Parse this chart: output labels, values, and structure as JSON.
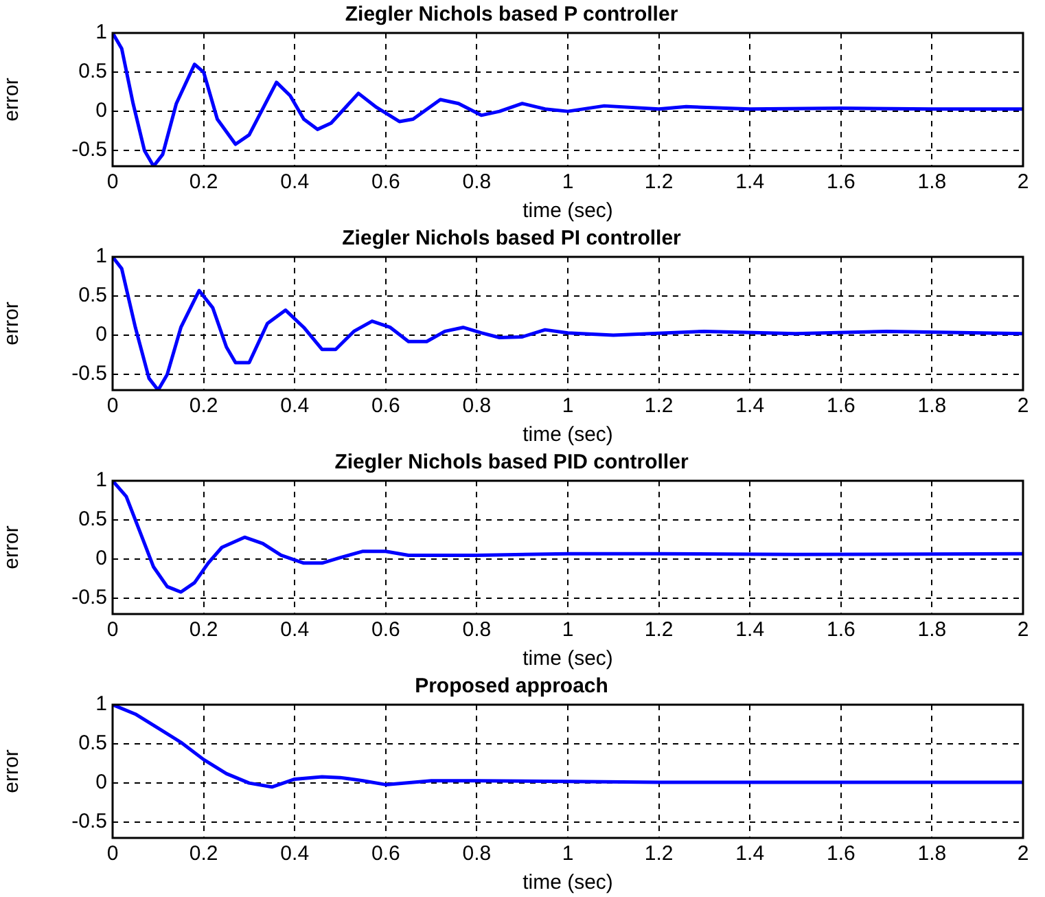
{
  "chart_data": [
    {
      "type": "line",
      "title": "Ziegler Nichols based P controller",
      "xlabel": "time (sec)",
      "ylabel": "error",
      "xlim": [
        0,
        2
      ],
      "ylim": [
        -0.7,
        1
      ],
      "xticks": [
        0,
        0.2,
        0.4,
        0.6,
        0.8,
        1,
        1.2,
        1.4,
        1.6,
        1.8,
        2
      ],
      "yticks": [
        -0.5,
        0,
        0.5,
        1
      ],
      "grid": true,
      "line_style": "solid",
      "marker": "none",
      "series": [
        {
          "color": "#0000ff",
          "x": [
            0,
            0.02,
            0.045,
            0.07,
            0.09,
            0.11,
            0.14,
            0.18,
            0.2,
            0.23,
            0.27,
            0.3,
            0.36,
            0.39,
            0.42,
            0.45,
            0.48,
            0.54,
            0.58,
            0.63,
            0.66,
            0.72,
            0.76,
            0.81,
            0.85,
            0.9,
            0.95,
            1.0,
            1.08,
            1.2,
            1.26,
            1.4,
            1.6,
            1.8,
            2
          ],
          "values": [
            1,
            0.8,
            0.1,
            -0.5,
            -0.7,
            -0.55,
            0.1,
            0.6,
            0.5,
            -0.1,
            -0.42,
            -0.3,
            0.37,
            0.2,
            -0.1,
            -0.23,
            -0.15,
            0.23,
            0.05,
            -0.13,
            -0.1,
            0.15,
            0.1,
            -0.05,
            0.0,
            0.1,
            0.03,
            0.0,
            0.07,
            0.03,
            0.06,
            0.03,
            0.04,
            0.03,
            0.03
          ]
        }
      ]
    },
    {
      "type": "line",
      "title": "Ziegler Nichols based PI controller",
      "xlabel": "time (sec)",
      "ylabel": "error",
      "xlim": [
        0,
        2
      ],
      "ylim": [
        -0.7,
        1
      ],
      "xticks": [
        0,
        0.2,
        0.4,
        0.6,
        0.8,
        1,
        1.2,
        1.4,
        1.6,
        1.8,
        2
      ],
      "yticks": [
        -0.5,
        0,
        0.5,
        1
      ],
      "grid": true,
      "line_style": "solid",
      "marker": "none",
      "series": [
        {
          "color": "#0000ff",
          "x": [
            0,
            0.02,
            0.05,
            0.08,
            0.1,
            0.12,
            0.15,
            0.19,
            0.22,
            0.25,
            0.27,
            0.3,
            0.34,
            0.38,
            0.42,
            0.46,
            0.49,
            0.53,
            0.57,
            0.61,
            0.65,
            0.69,
            0.73,
            0.77,
            0.81,
            0.85,
            0.9,
            0.95,
            1.0,
            1.1,
            1.3,
            1.5,
            1.7,
            2
          ],
          "values": [
            1,
            0.85,
            0.1,
            -0.55,
            -0.7,
            -0.5,
            0.1,
            0.57,
            0.35,
            -0.15,
            -0.35,
            -0.35,
            0.15,
            0.32,
            0.1,
            -0.18,
            -0.18,
            0.05,
            0.18,
            0.1,
            -0.08,
            -0.08,
            0.05,
            0.1,
            0.03,
            -0.03,
            -0.02,
            0.07,
            0.03,
            0,
            0.05,
            0.02,
            0.05,
            0.02
          ]
        }
      ]
    },
    {
      "type": "line",
      "title": "Ziegler Nichols based PID controller",
      "xlabel": "time (sec)",
      "ylabel": "error",
      "xlim": [
        0,
        2
      ],
      "ylim": [
        -0.7,
        1
      ],
      "xticks": [
        0,
        0.2,
        0.4,
        0.6,
        0.8,
        1,
        1.2,
        1.4,
        1.6,
        1.8,
        2
      ],
      "yticks": [
        -0.5,
        0,
        0.5,
        1
      ],
      "grid": true,
      "line_style": "solid",
      "marker": "none",
      "series": [
        {
          "color": "#0000ff",
          "x": [
            0,
            0.03,
            0.06,
            0.09,
            0.12,
            0.15,
            0.18,
            0.21,
            0.24,
            0.29,
            0.33,
            0.37,
            0.42,
            0.46,
            0.5,
            0.55,
            0.6,
            0.65,
            0.8,
            1.0,
            1.2,
            1.5,
            2
          ],
          "values": [
            1,
            0.8,
            0.35,
            -0.1,
            -0.35,
            -0.42,
            -0.3,
            -0.05,
            0.15,
            0.28,
            0.2,
            0.05,
            -0.05,
            -0.05,
            0.02,
            0.1,
            0.1,
            0.05,
            0.05,
            0.07,
            0.07,
            0.06,
            0.07
          ]
        }
      ]
    },
    {
      "type": "line",
      "title": "Proposed approach",
      "xlabel": "time (sec)",
      "ylabel": "error",
      "xlim": [
        0,
        2
      ],
      "ylim": [
        -0.7,
        1
      ],
      "xticks": [
        0,
        0.2,
        0.4,
        0.6,
        0.8,
        1,
        1.2,
        1.4,
        1.6,
        1.8,
        2
      ],
      "yticks": [
        -0.5,
        0,
        0.5,
        1
      ],
      "grid": true,
      "line_style": "solid",
      "marker": "none",
      "series": [
        {
          "color": "#0000ff",
          "x": [
            0,
            0.05,
            0.1,
            0.15,
            0.2,
            0.25,
            0.3,
            0.35,
            0.4,
            0.46,
            0.5,
            0.55,
            0.6,
            0.7,
            0.8,
            1.0,
            1.2,
            1.5,
            2
          ],
          "values": [
            1,
            0.88,
            0.7,
            0.52,
            0.3,
            0.12,
            0,
            -0.05,
            0.05,
            0.08,
            0.07,
            0.03,
            -0.02,
            0.03,
            0.03,
            0.02,
            0.01,
            0.01,
            0.01
          ]
        }
      ]
    }
  ]
}
